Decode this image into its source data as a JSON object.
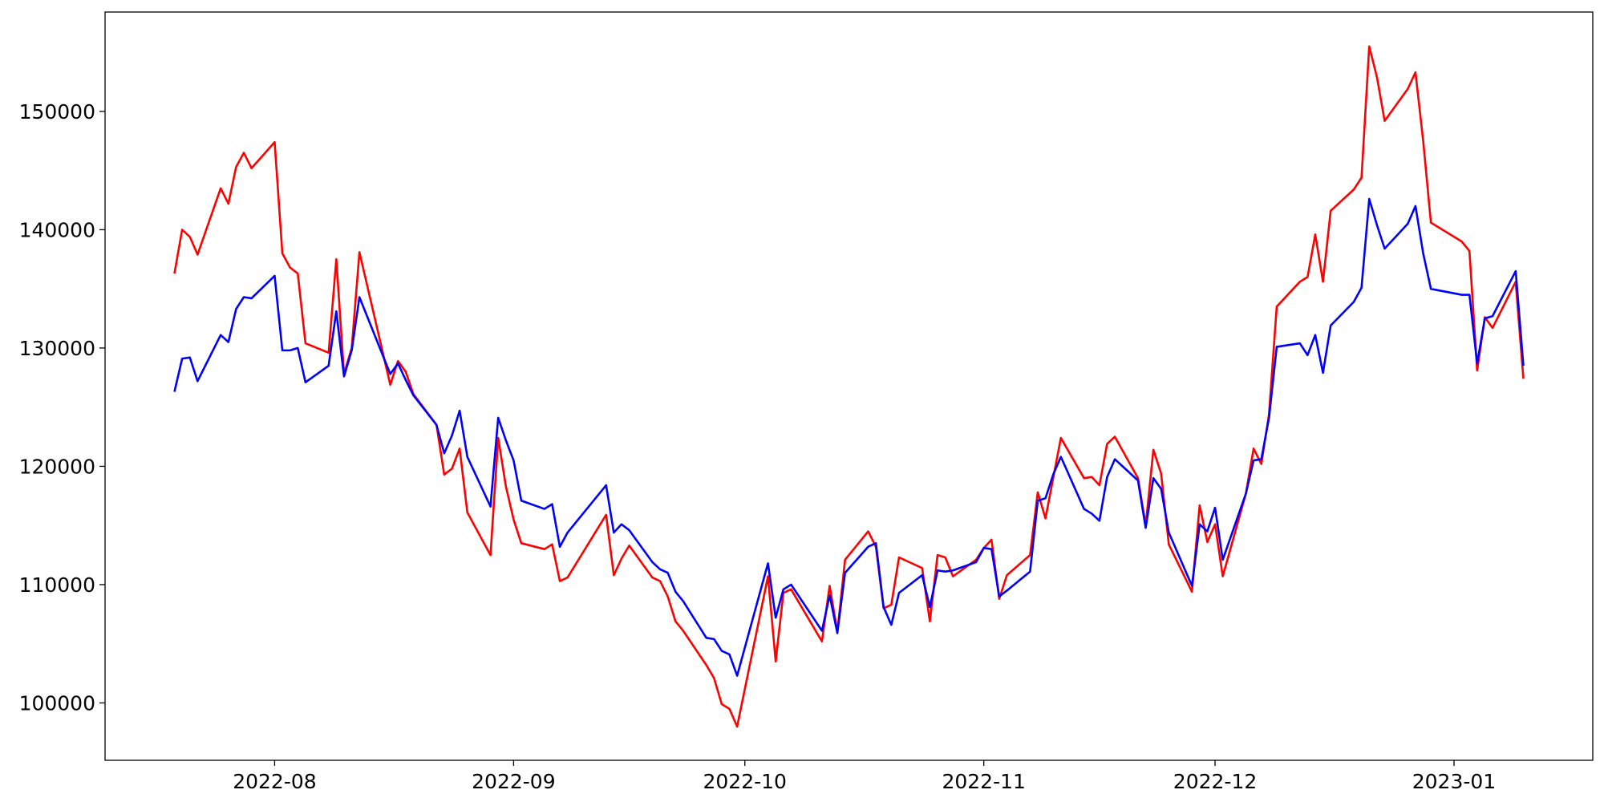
{
  "chart_data": {
    "type": "line",
    "x": [
      "2022-07-19",
      "2022-07-20",
      "2022-07-21",
      "2022-07-22",
      "2022-07-25",
      "2022-07-26",
      "2022-07-27",
      "2022-07-28",
      "2022-07-29",
      "2022-08-01",
      "2022-08-02",
      "2022-08-03",
      "2022-08-04",
      "2022-08-05",
      "2022-08-08",
      "2022-08-09",
      "2022-08-10",
      "2022-08-11",
      "2022-08-12",
      "2022-08-16",
      "2022-08-17",
      "2022-08-18",
      "2022-08-19",
      "2022-08-22",
      "2022-08-23",
      "2022-08-24",
      "2022-08-25",
      "2022-08-26",
      "2022-08-29",
      "2022-08-30",
      "2022-08-31",
      "2022-09-01",
      "2022-09-02",
      "2022-09-05",
      "2022-09-06",
      "2022-09-07",
      "2022-09-08",
      "2022-09-13",
      "2022-09-14",
      "2022-09-15",
      "2022-09-16",
      "2022-09-19",
      "2022-09-20",
      "2022-09-21",
      "2022-09-22",
      "2022-09-23",
      "2022-09-26",
      "2022-09-27",
      "2022-09-28",
      "2022-09-29",
      "2022-09-30",
      "2022-10-04",
      "2022-10-05",
      "2022-10-06",
      "2022-10-07",
      "2022-10-11",
      "2022-10-12",
      "2022-10-13",
      "2022-10-14",
      "2022-10-17",
      "2022-10-18",
      "2022-10-19",
      "2022-10-20",
      "2022-10-21",
      "2022-10-24",
      "2022-10-25",
      "2022-10-26",
      "2022-10-27",
      "2022-10-28",
      "2022-10-31",
      "2022-11-01",
      "2022-11-02",
      "2022-11-03",
      "2022-11-04",
      "2022-11-07",
      "2022-11-08",
      "2022-11-09",
      "2022-11-10",
      "2022-11-11",
      "2022-11-14",
      "2022-11-15",
      "2022-11-16",
      "2022-11-17",
      "2022-11-18",
      "2022-11-21",
      "2022-11-22",
      "2022-11-23",
      "2022-11-24",
      "2022-11-25",
      "2022-11-28",
      "2022-11-29",
      "2022-11-30",
      "2022-12-01",
      "2022-12-02",
      "2022-12-05",
      "2022-12-06",
      "2022-12-07",
      "2022-12-08",
      "2022-12-09",
      "2022-12-12",
      "2022-12-13",
      "2022-12-14",
      "2022-12-15",
      "2022-12-16",
      "2022-12-19",
      "2022-12-20",
      "2022-12-21",
      "2022-12-22",
      "2022-12-23",
      "2022-12-26",
      "2022-12-27",
      "2022-12-28",
      "2022-12-29",
      "2023-01-02",
      "2023-01-03",
      "2023-01-04",
      "2023-01-05",
      "2023-01-06",
      "2023-01-09",
      "2023-01-10"
    ],
    "series": [
      {
        "color": "#ff0000",
        "values": [
          136300,
          140000,
          139400,
          137900,
          143500,
          142200,
          145300,
          146500,
          145200,
          147400,
          138000,
          136800,
          136300,
          130400,
          129600,
          137500,
          127800,
          130000,
          138100,
          126900,
          128900,
          128000,
          126100,
          123500,
          119300,
          119800,
          121500,
          116100,
          112500,
          122400,
          118300,
          115500,
          113500,
          113000,
          113400,
          110300,
          110600,
          115900,
          110800,
          112200,
          113300,
          110600,
          110300,
          109000,
          106900,
          106100,
          103200,
          102100,
          99900,
          99500,
          98000,
          110700,
          103500,
          109300,
          109600,
          105200,
          109900,
          106000,
          112100,
          114500,
          113200,
          108000,
          108300,
          112300,
          111400,
          106900,
          112500,
          112300,
          110700,
          112100,
          113100,
          113800,
          108800,
          110800,
          112500,
          117800,
          115600,
          119000,
          122400,
          119000,
          119100,
          118400,
          121900,
          122500,
          119000,
          115000,
          121400,
          119400,
          113400,
          109400,
          116700,
          113600,
          115100,
          110700,
          117700,
          121500,
          120200,
          124400,
          133500,
          135600,
          136000,
          139600,
          135600,
          141600,
          143400,
          144400,
          155500,
          152900,
          149200,
          151900,
          153300,
          147500,
          140600,
          139000,
          138200,
          128100,
          132600,
          131700,
          135600,
          127400
        ]
      },
      {
        "color": "#0000ff",
        "values": [
          126300,
          129100,
          129200,
          127200,
          131100,
          130500,
          133300,
          134300,
          134200,
          136100,
          129800,
          129800,
          130000,
          127100,
          128500,
          133100,
          127600,
          129800,
          134300,
          127800,
          128700,
          127300,
          126000,
          123500,
          121100,
          122600,
          124700,
          120800,
          116600,
          124100,
          122200,
          120500,
          117100,
          116400,
          116800,
          113200,
          114400,
          118400,
          114400,
          115100,
          114600,
          111900,
          111300,
          111000,
          109400,
          108600,
          105500,
          105400,
          104400,
          104100,
          102300,
          111800,
          107200,
          109600,
          110000,
          106100,
          109100,
          105900,
          111000,
          113200,
          113500,
          108100,
          106600,
          109300,
          110800,
          108100,
          111200,
          111100,
          111200,
          111900,
          113100,
          113000,
          109000,
          109500,
          111100,
          117100,
          117300,
          119300,
          120800,
          116400,
          116000,
          115400,
          119100,
          120600,
          118800,
          114800,
          119000,
          118100,
          114400,
          109900,
          115100,
          114500,
          116500,
          112100,
          117700,
          120500,
          120600,
          124100,
          130100,
          130400,
          129400,
          131100,
          127900,
          131900,
          133900,
          135100,
          142600,
          140400,
          138400,
          140500,
          142000,
          138000,
          135000,
          134500,
          134500,
          128700,
          132500,
          132700,
          136500,
          128500
        ]
      }
    ],
    "xlim": [
      "2022-07-10",
      "2023-01-19"
    ],
    "xticks": [
      "2022-08",
      "2022-09",
      "2022-10",
      "2022-11",
      "2022-12",
      "2023-01"
    ],
    "ylim": [
      95150,
      158400
    ],
    "yticks": [
      100000,
      110000,
      120000,
      130000,
      140000,
      150000
    ],
    "grid": false
  }
}
